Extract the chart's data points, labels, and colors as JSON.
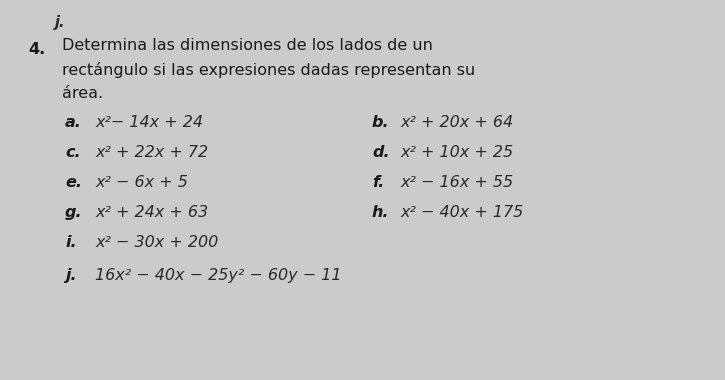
{
  "background_color": "#cccbcb",
  "number": "4.",
  "title_line1": "Determina las dimensiones de los lados de un",
  "title_line2": "rectángulo si las expresiones dadas representan su",
  "title_line3": "área.",
  "top_j": "j.",
  "items_left": [
    {
      "label": "a.",
      "expr": "x²− 14x + 24"
    },
    {
      "label": "c.",
      "expr": "x² + 22x + 72"
    },
    {
      "label": "e.",
      "expr": "x² − 6x + 5"
    },
    {
      "label": "g.",
      "expr": "x² + 24x + 63"
    },
    {
      "label": "i.",
      "expr": "x² − 30x + 200"
    },
    {
      "label": "j.",
      "expr": "16x² − 40x − 25y² − 60y − 11"
    }
  ],
  "items_right": [
    {
      "label": "b.",
      "expr": "x² + 20x + 64"
    },
    {
      "label": "d.",
      "expr": "x² + 10x + 25"
    },
    {
      "label": "f.",
      "expr": "x² − 16x + 55"
    },
    {
      "label": "h.",
      "expr": "x² − 40x + 175"
    }
  ],
  "text_color": "#2a2a2a",
  "label_color": "#1a1a1a",
  "title_color": "#1a1a1a",
  "number_color": "#1a1a1a"
}
